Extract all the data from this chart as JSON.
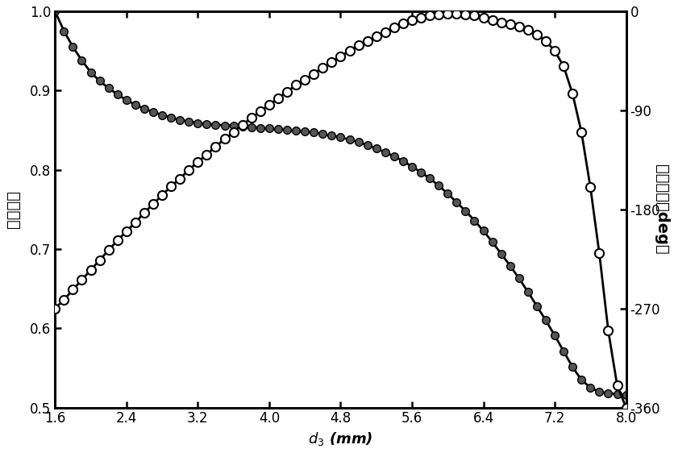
{
  "xlabel": "$d_3$ (mm)",
  "ylabel_left": "透射幅度",
  "ylabel_right": "透射相位（deg）",
  "xlim": [
    1.6,
    8.0
  ],
  "ylim_left": [
    0.5,
    1.0
  ],
  "ylim_right": [
    -360,
    0
  ],
  "xticks": [
    1.6,
    2.4,
    3.2,
    4.0,
    4.8,
    5.6,
    6.4,
    7.2,
    8.0
  ],
  "yticks_left": [
    0.5,
    0.6,
    0.7,
    0.8,
    0.9,
    1.0
  ],
  "yticks_right": [
    0,
    -90,
    -180,
    -270,
    -360
  ],
  "amplitude_x": [
    1.6,
    1.7,
    1.8,
    1.9,
    2.0,
    2.1,
    2.2,
    2.3,
    2.4,
    2.5,
    2.6,
    2.7,
    2.8,
    2.9,
    3.0,
    3.1,
    3.2,
    3.3,
    3.4,
    3.5,
    3.6,
    3.7,
    3.8,
    3.9,
    4.0,
    4.1,
    4.2,
    4.3,
    4.4,
    4.5,
    4.6,
    4.7,
    4.8,
    4.9,
    5.0,
    5.1,
    5.2,
    5.3,
    5.4,
    5.5,
    5.6,
    5.7,
    5.8,
    5.9,
    6.0,
    6.1,
    6.2,
    6.3,
    6.4,
    6.5,
    6.6,
    6.7,
    6.8,
    6.9,
    7.0,
    7.1,
    7.2,
    7.3,
    7.4,
    7.5,
    7.6,
    7.7,
    7.8,
    7.9,
    8.0
  ],
  "amplitude_y": [
    1.0,
    0.975,
    0.955,
    0.938,
    0.923,
    0.912,
    0.903,
    0.895,
    0.888,
    0.882,
    0.877,
    0.873,
    0.869,
    0.866,
    0.863,
    0.861,
    0.859,
    0.858,
    0.857,
    0.856,
    0.856,
    0.855,
    0.854,
    0.853,
    0.852,
    0.851,
    0.85,
    0.849,
    0.848,
    0.847,
    0.845,
    0.843,
    0.841,
    0.838,
    0.835,
    0.831,
    0.827,
    0.822,
    0.817,
    0.811,
    0.804,
    0.797,
    0.789,
    0.78,
    0.77,
    0.759,
    0.748,
    0.736,
    0.723,
    0.709,
    0.694,
    0.679,
    0.663,
    0.646,
    0.628,
    0.61,
    0.591,
    0.571,
    0.551,
    0.535,
    0.525,
    0.52,
    0.518,
    0.517,
    0.516
  ],
  "phase_x": [
    1.6,
    1.7,
    1.8,
    1.9,
    2.0,
    2.1,
    2.2,
    2.3,
    2.4,
    2.5,
    2.6,
    2.7,
    2.8,
    2.9,
    3.0,
    3.1,
    3.2,
    3.3,
    3.4,
    3.5,
    3.6,
    3.7,
    3.8,
    3.9,
    4.0,
    4.1,
    4.2,
    4.3,
    4.4,
    4.5,
    4.6,
    4.7,
    4.8,
    4.9,
    5.0,
    5.1,
    5.2,
    5.3,
    5.4,
    5.5,
    5.6,
    5.7,
    5.8,
    5.9,
    6.0,
    6.1,
    6.2,
    6.3,
    6.4,
    6.5,
    6.6,
    6.7,
    6.8,
    6.9,
    7.0,
    7.1,
    7.2,
    7.3,
    7.4,
    7.5,
    7.6,
    7.7,
    7.8,
    7.9,
    8.0
  ],
  "phase_y": [
    -270,
    -262,
    -253,
    -244,
    -235,
    -226,
    -217,
    -208,
    -200,
    -192,
    -183,
    -175,
    -167,
    -159,
    -152,
    -144,
    -137,
    -130,
    -123,
    -116,
    -110,
    -103,
    -97,
    -91,
    -85,
    -79,
    -73,
    -67,
    -62,
    -57,
    -51,
    -46,
    -41,
    -36,
    -31,
    -27,
    -23,
    -19,
    -15,
    -11,
    -8,
    -6,
    -4,
    -3,
    -2,
    -2,
    -3,
    -4,
    -6,
    -8,
    -10,
    -12,
    -14,
    -17,
    -21,
    -27,
    -36,
    -50,
    -75,
    -110,
    -160,
    -220,
    -290,
    -340,
    -360
  ],
  "bg_color": "#ffffff",
  "line_color": "#000000",
  "amplitude_marker_facecolor": "#555555",
  "amplitude_marker_edgecolor": "#000000",
  "phase_marker_facecolor": "#ffffff",
  "phase_marker_edgecolor": "#000000"
}
